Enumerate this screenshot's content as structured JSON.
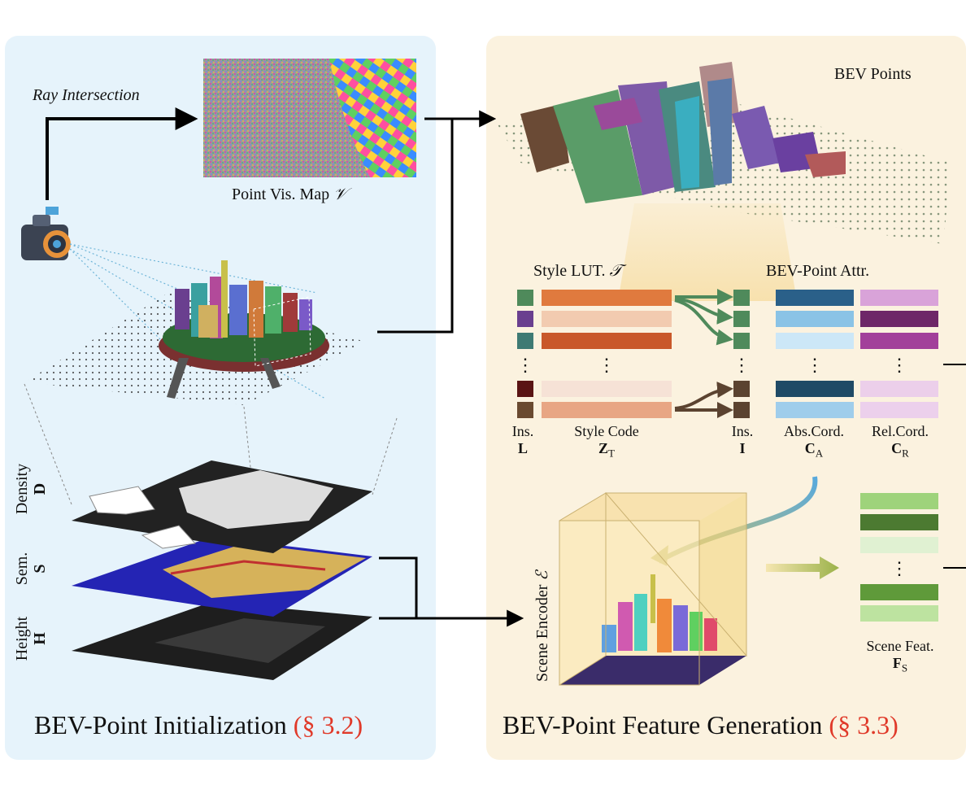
{
  "left_panel": {
    "ray_label": "Ray Intersection",
    "vis_map_label": "Point Vis. Map",
    "vis_map_symbol": "𝒱",
    "layers": [
      {
        "name": "Density",
        "symbol": "D"
      },
      {
        "name": "Sem.",
        "symbol": "S"
      },
      {
        "name": "Height",
        "symbol": "H"
      }
    ],
    "section_title": "BEV-Point Initialization",
    "section_ref": "(§ 3.2)"
  },
  "right_panel": {
    "points_label": "BEV Points",
    "style_lut_label": "Style LUT.",
    "style_lut_symbol": "𝒯",
    "attr_label": "BEV-Point Attr.",
    "ellipsis": "⋮",
    "columns": [
      {
        "name": "Ins.",
        "symbol": "L"
      },
      {
        "name": "Style Code",
        "symbol": "Z",
        "sub": "T"
      },
      {
        "name": "Ins.",
        "symbol": "I"
      },
      {
        "name": "Abs.Cord.",
        "symbol": "C",
        "sub": "A"
      },
      {
        "name": "Rel.Cord.",
        "symbol": "C",
        "sub": "R"
      }
    ],
    "encoder_label": "Scene Encoder",
    "encoder_symbol": "ℰ",
    "scene_feat_label": "Scene Feat.",
    "scene_feat_symbol": "F",
    "scene_feat_sub": "S",
    "section_title": "BEV-Point Feature Generation",
    "section_ref": "(§ 3.3)"
  },
  "colors": {
    "left_bg": "#e6f3fb",
    "right_bg": "#fbf2df",
    "ref_red": "#e03a2a",
    "style_orange": [
      "#e07a3e",
      "#f2cbb0",
      "#c9582a",
      "#f6e2d6",
      "#e8a684"
    ],
    "ins_L": [
      "#4f8a5b",
      "#6a3f8f",
      "#3e7a73",
      "#5a1414",
      "#6a4a30"
    ],
    "ins_I": [
      "#4f8a5b",
      "#4f8a5b",
      "#4f8a5b",
      "#5b4330",
      "#5b4330"
    ],
    "abs_blue": [
      "#2a6089",
      "#8ac3e6",
      "#cce7f7",
      "#1f4a66",
      "#9fcdeb"
    ],
    "rel_purple": [
      "#d9a3d9",
      "#6e2768",
      "#a2409a",
      "#eccfea",
      "#ecd0ec"
    ],
    "feat_green": [
      "#9ed37b",
      "#4c7a31",
      "#e0f1d2",
      "#5f9a3a",
      "#bde3a0"
    ]
  }
}
